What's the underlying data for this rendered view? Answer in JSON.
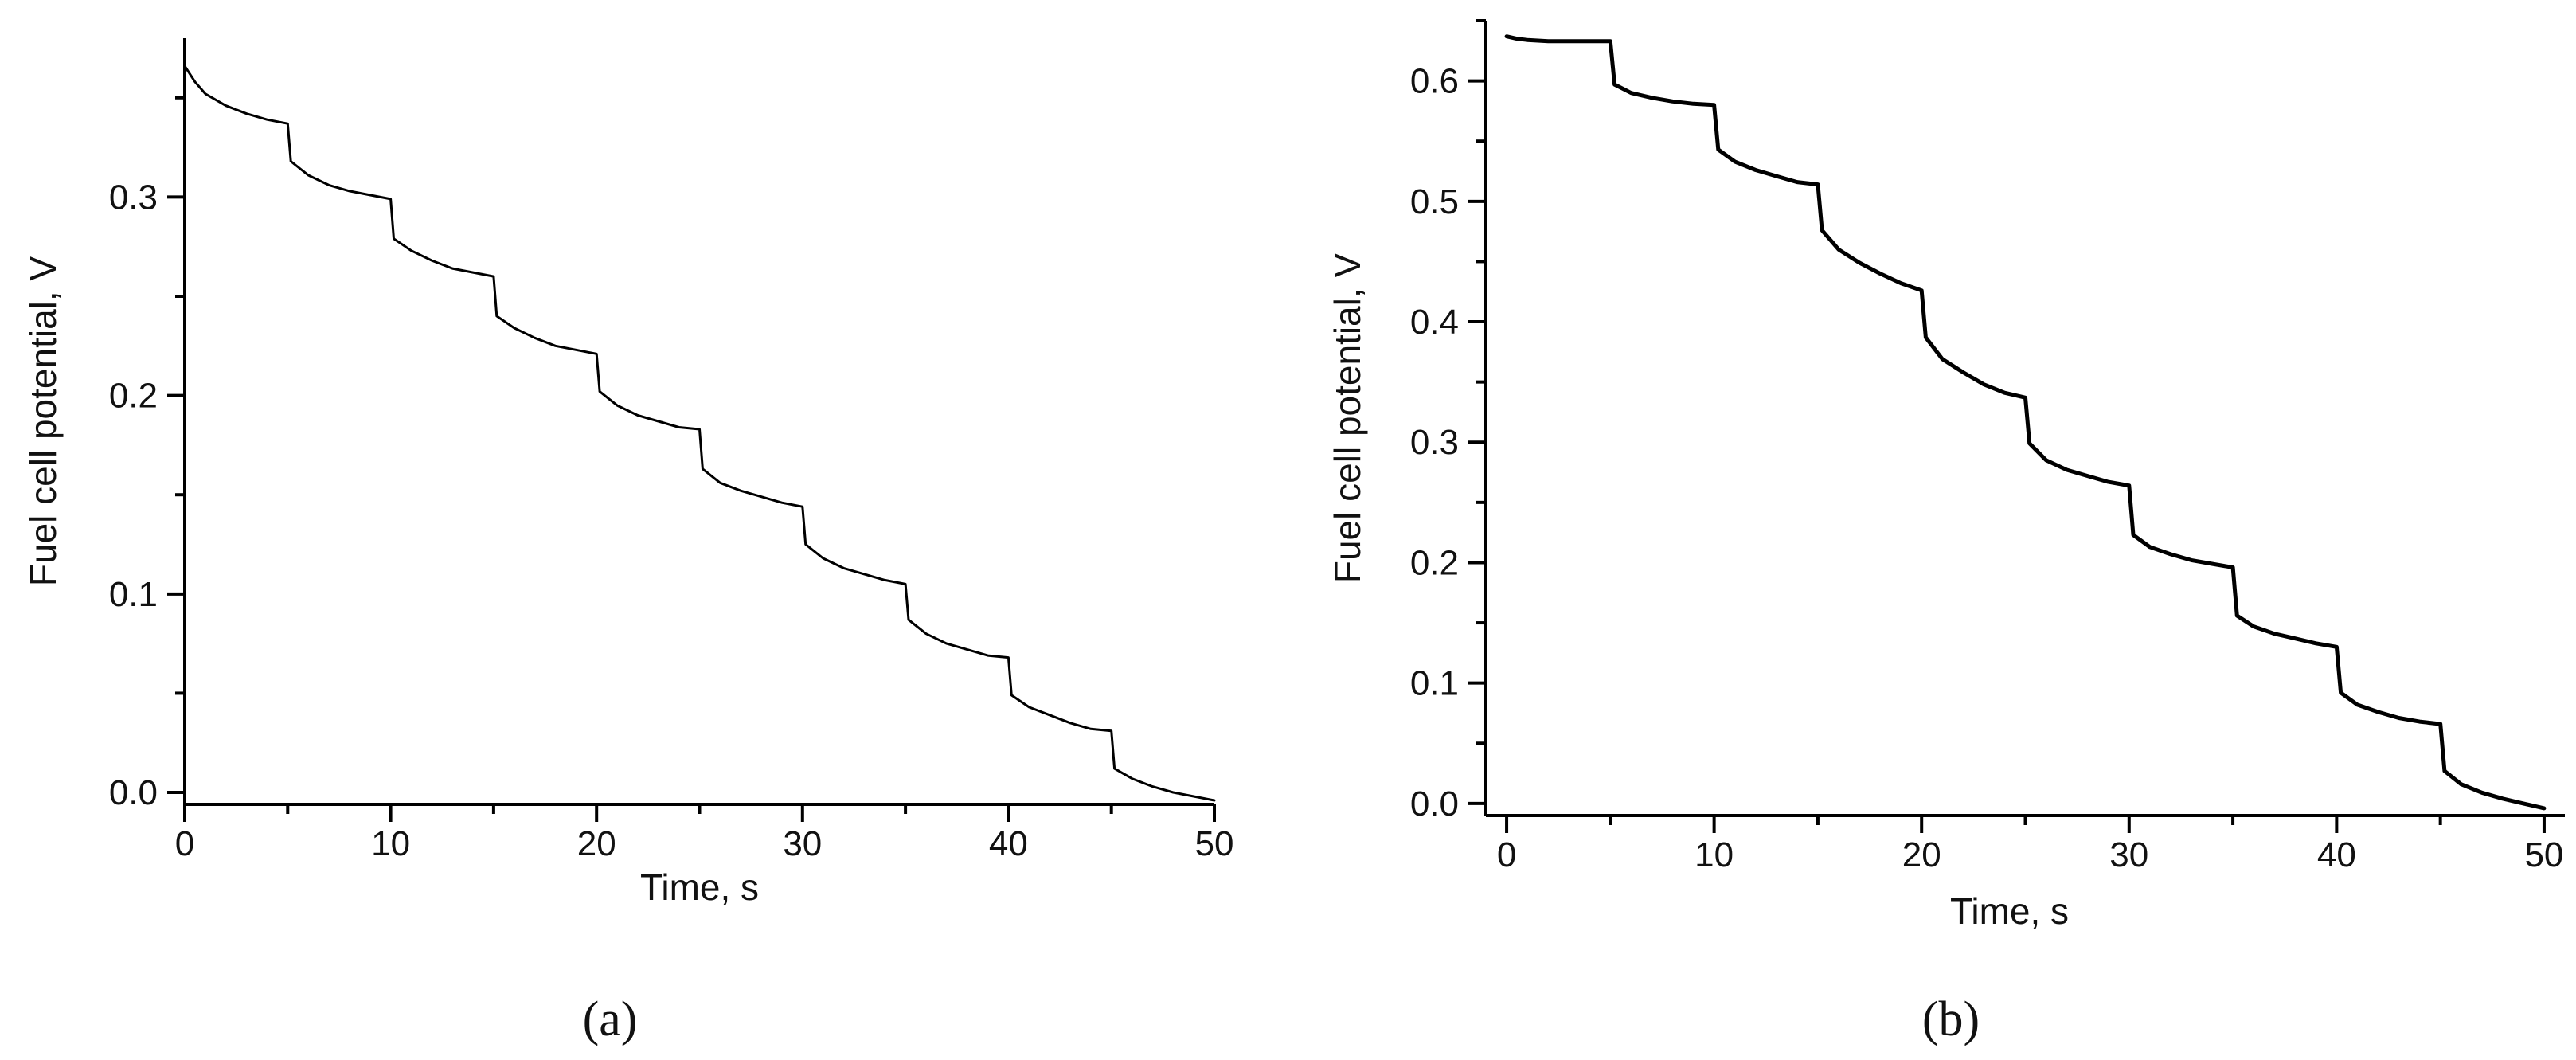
{
  "chart_data": [
    {
      "type": "line",
      "panel_label": "(a)",
      "xlabel": "Time, s",
      "ylabel": "Fuel cell potential, V",
      "xlim": [
        0,
        50
      ],
      "ylim": [
        -0.006,
        0.38
      ],
      "x_ticks": [
        "0",
        "10",
        "20",
        "30",
        "40",
        "50"
      ],
      "y_ticks": [
        "0.0",
        "0.1",
        "0.2",
        "0.3"
      ],
      "x_tick_values": [
        0,
        10,
        20,
        30,
        40,
        50
      ],
      "y_tick_values": [
        0.0,
        0.1,
        0.2,
        0.3
      ],
      "x_minor_step": 5,
      "y_minor_step": 0.05,
      "grid": false,
      "series": [
        {
          "x": [
            0,
            0.5,
            1,
            2,
            3,
            4,
            5,
            5.15,
            6,
            7,
            8,
            9,
            10,
            10.15,
            11,
            12,
            13,
            14,
            15,
            15.15,
            16,
            17,
            18,
            19,
            20,
            20.15,
            21,
            22,
            23,
            24,
            25,
            25.15,
            26,
            27,
            28,
            29,
            30,
            30.15,
            31,
            32,
            33,
            34,
            35,
            35.15,
            36,
            37,
            38,
            39,
            40,
            40.15,
            41,
            42,
            43,
            44,
            45,
            45.15,
            46,
            47,
            48,
            49,
            50
          ],
          "y": [
            0.366,
            0.358,
            0.352,
            0.346,
            0.342,
            0.339,
            0.337,
            0.318,
            0.311,
            0.306,
            0.303,
            0.301,
            0.299,
            0.279,
            0.273,
            0.268,
            0.264,
            0.262,
            0.26,
            0.24,
            0.234,
            0.229,
            0.225,
            0.223,
            0.221,
            0.202,
            0.195,
            0.19,
            0.187,
            0.184,
            0.183,
            0.163,
            0.156,
            0.152,
            0.149,
            0.146,
            0.144,
            0.125,
            0.118,
            0.113,
            0.11,
            0.107,
            0.105,
            0.087,
            0.08,
            0.075,
            0.072,
            0.069,
            0.068,
            0.049,
            0.043,
            0.039,
            0.035,
            0.032,
            0.031,
            0.012,
            0.007,
            0.003,
            0.0,
            -0.002,
            -0.004
          ]
        }
      ]
    },
    {
      "type": "line",
      "panel_label": "(b)",
      "xlabel": "Time, s",
      "ylabel": "Fuel cell potential, V",
      "xlim": [
        -1,
        51
      ],
      "ylim": [
        -0.01,
        0.65
      ],
      "x_ticks": [
        "0",
        "10",
        "20",
        "30",
        "40",
        "50"
      ],
      "y_ticks": [
        "0.0",
        "0.1",
        "0.2",
        "0.3",
        "0.4",
        "0.5",
        "0.6"
      ],
      "x_tick_values": [
        0,
        10,
        20,
        30,
        40,
        50
      ],
      "y_tick_values": [
        0.0,
        0.1,
        0.2,
        0.3,
        0.4,
        0.5,
        0.6
      ],
      "x_minor_step": 5,
      "y_minor_step": 0.05,
      "grid": false,
      "series": [
        {
          "x": [
            0,
            0.5,
            1,
            2,
            3,
            4,
            5,
            5.2,
            6,
            7,
            8,
            9,
            10,
            10.2,
            11,
            12,
            13,
            14,
            15,
            15.2,
            16,
            17,
            18,
            19,
            20,
            20.2,
            21,
            22,
            23,
            24,
            25,
            25.2,
            26,
            27,
            28,
            29,
            30,
            30.2,
            31,
            32,
            33,
            34,
            35,
            35.2,
            36,
            37,
            38,
            39,
            40,
            40.2,
            41,
            42,
            43,
            44,
            45,
            45.2,
            46,
            47,
            48,
            49,
            50
          ],
          "y": [
            0.637,
            0.635,
            0.634,
            0.633,
            0.633,
            0.633,
            0.633,
            0.597,
            0.59,
            0.586,
            0.583,
            0.581,
            0.58,
            0.543,
            0.533,
            0.526,
            0.521,
            0.516,
            0.514,
            0.476,
            0.46,
            0.449,
            0.44,
            0.432,
            0.426,
            0.387,
            0.369,
            0.358,
            0.348,
            0.341,
            0.337,
            0.299,
            0.285,
            0.277,
            0.272,
            0.267,
            0.264,
            0.223,
            0.213,
            0.207,
            0.202,
            0.199,
            0.196,
            0.156,
            0.147,
            0.141,
            0.137,
            0.133,
            0.13,
            0.092,
            0.082,
            0.076,
            0.071,
            0.068,
            0.066,
            0.027,
            0.016,
            0.009,
            0.004,
            0.0,
            -0.004
          ]
        }
      ]
    }
  ]
}
